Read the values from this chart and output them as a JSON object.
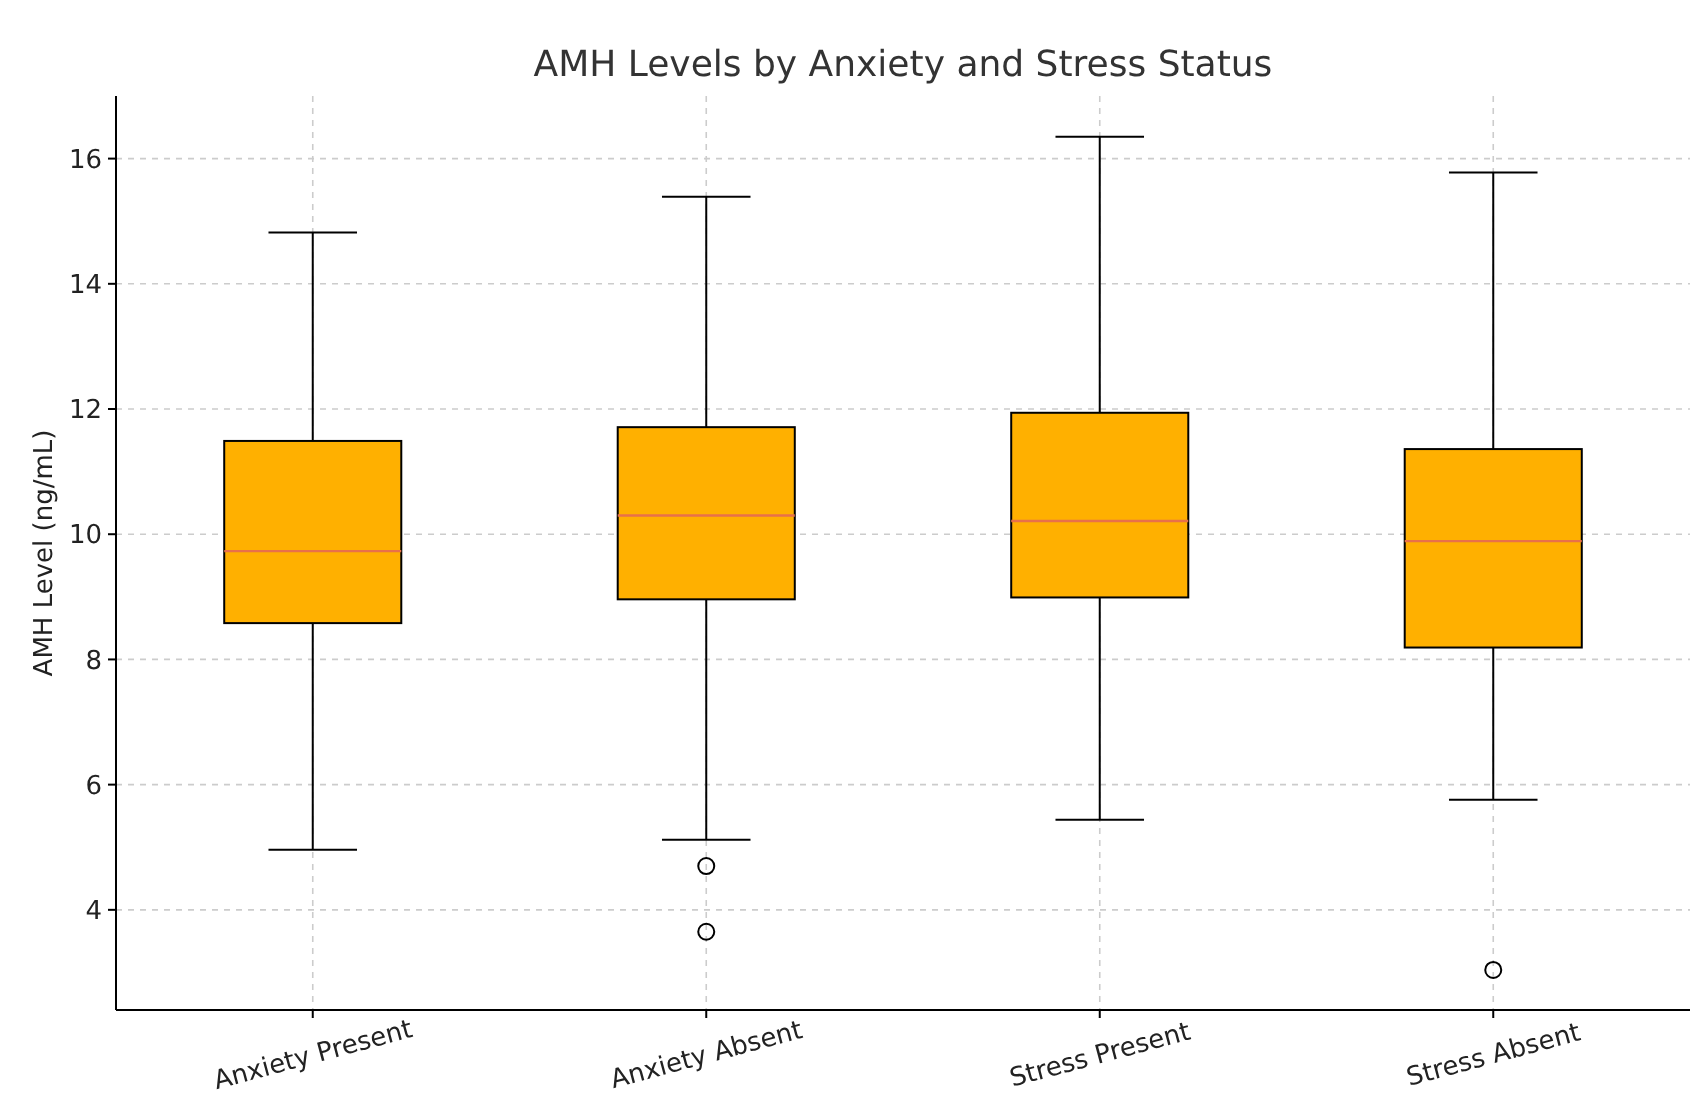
{
  "chart_data": {
    "type": "box",
    "title": "AMH Levels by Anxiety and Stress Status",
    "ylabel": "AMH Level (ng/mL)",
    "categories": [
      "Anxiety Present",
      "Anxiety Absent",
      "Stress Present",
      "Stress Absent"
    ],
    "boxes": [
      {
        "low": 4.96,
        "q1": 8.58,
        "median": 9.73,
        "q3": 11.49,
        "high": 14.82
      },
      {
        "low": 5.12,
        "q1": 8.96,
        "median": 10.3,
        "q3": 11.71,
        "high": 15.39,
        "outliers": [
          4.7,
          3.65
        ]
      },
      {
        "low": 5.44,
        "q1": 8.99,
        "median": 10.21,
        "q3": 11.94,
        "high": 16.35
      },
      {
        "low": 5.76,
        "q1": 8.19,
        "median": 9.89,
        "q3": 11.36,
        "high": 15.78,
        "outliers": [
          3.04
        ]
      }
    ],
    "color": "#ffb000",
    "ylim": [
      2.4,
      17.0
    ],
    "yticks": [
      4,
      6,
      8,
      10,
      12,
      14,
      16
    ],
    "grid": true
  }
}
